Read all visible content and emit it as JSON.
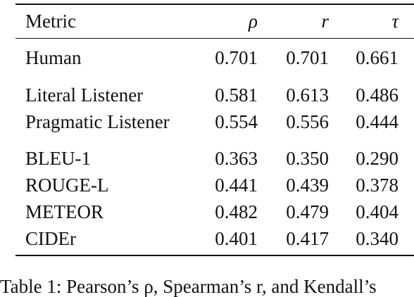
{
  "table": {
    "header": {
      "metric": "Metric",
      "col1": "ρ",
      "col2": "r",
      "col3": "τ"
    },
    "rows": [
      {
        "metric": "Human",
        "v1": "0.701",
        "v2": "0.701",
        "v3": "0.661"
      },
      {
        "metric": "Literal Listener",
        "v1": "0.581",
        "v2": "0.613",
        "v3": "0.486"
      },
      {
        "metric": "Pragmatic Listener",
        "v1": "0.554",
        "v2": "0.556",
        "v3": "0.444"
      },
      {
        "metric": "BLEU-1",
        "v1": "0.363",
        "v2": "0.350",
        "v3": "0.290"
      },
      {
        "metric": "ROUGE-L",
        "v1": "0.441",
        "v2": "0.439",
        "v3": "0.378"
      },
      {
        "metric": "METEOR",
        "v1": "0.482",
        "v2": "0.479",
        "v3": "0.404"
      },
      {
        "metric": "CIDEr",
        "v1": "0.401",
        "v2": "0.417",
        "v3": "0.340"
      }
    ]
  },
  "caption": "Table 1: Pearson’s ρ, Spearman’s r, and Kendall’s"
}
